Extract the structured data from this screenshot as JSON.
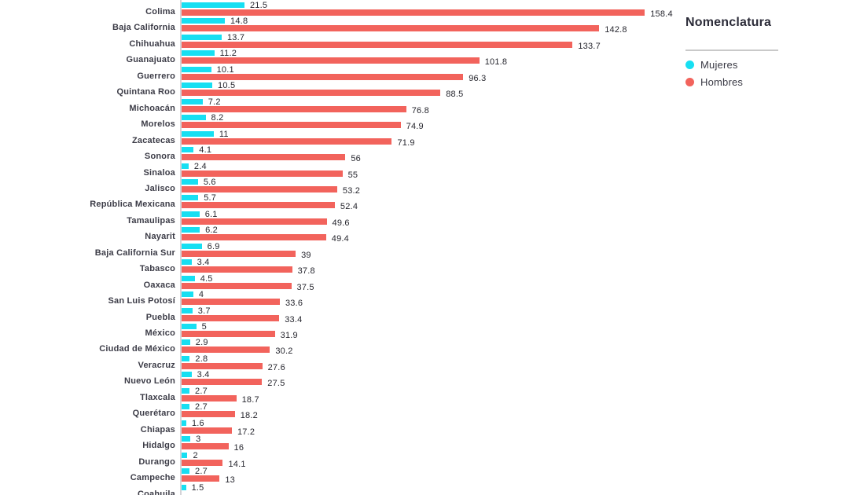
{
  "legend": {
    "title": "Nomenclatura",
    "items": [
      {
        "label": "Mujeres",
        "color": "#17dff2"
      },
      {
        "label": "Hombres",
        "color": "#f2635c"
      }
    ]
  },
  "colors": {
    "mujeres_bar": "#17dff2",
    "hombres_bar": "#f2635c",
    "category_text": "#3c3c47",
    "value_text": "#26262e",
    "axis_line": "#d4d4d8",
    "legend_divider": "#c9c9c9"
  },
  "chart_data": {
    "type": "bar",
    "orientation": "horizontal",
    "title": "",
    "legend_title": "Nomenclatura",
    "legend_position": "top-right",
    "value_labels_shown": true,
    "grid": false,
    "x_range": [
      0,
      160
    ],
    "categories": [
      "Colima",
      "Baja California",
      "Chihuahua",
      "Guanajuato",
      "Guerrero",
      "Quintana Roo",
      "Michoacán",
      "Morelos",
      "Zacatecas",
      "Sonora",
      "Sinaloa",
      "Jalisco",
      "República Mexicana",
      "Tamaulipas",
      "Nayarit",
      "Baja California Sur",
      "Tabasco",
      "Oaxaca",
      "San Luis Potosí",
      "Puebla",
      "México",
      "Ciudad de México",
      "Veracruz",
      "Nuevo León",
      "Tlaxcala",
      "Querétaro",
      "Chiapas",
      "Hidalgo",
      "Durango",
      "Campeche",
      "Coahuila"
    ],
    "series": [
      {
        "name": "Mujeres",
        "color": "#17dff2",
        "values": [
          21.5,
          14.8,
          13.7,
          11.2,
          10.1,
          10.5,
          7.2,
          8.2,
          11,
          4.1,
          2.4,
          5.6,
          5.7,
          6.1,
          6.2,
          6.9,
          3.4,
          4.5,
          4,
          3.7,
          5,
          2.9,
          2.8,
          3.4,
          2.7,
          2.7,
          1.6,
          3,
          2,
          2.7,
          1.5
        ]
      },
      {
        "name": "Hombres",
        "color": "#f2635c",
        "values": [
          158.4,
          142.8,
          133.7,
          101.8,
          96.3,
          88.5,
          76.8,
          74.9,
          71.9,
          56,
          55,
          53.2,
          52.4,
          49.6,
          49.4,
          39,
          37.8,
          37.5,
          33.6,
          33.4,
          31.9,
          30.2,
          27.6,
          27.5,
          18.7,
          18.2,
          17.2,
          16,
          14.1,
          13,
          null
        ]
      }
    ]
  }
}
